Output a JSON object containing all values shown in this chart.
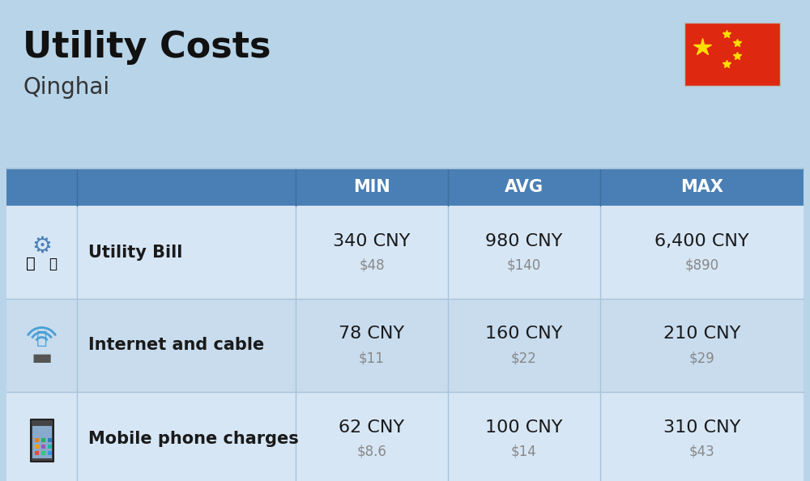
{
  "title": "Utility Costs",
  "subtitle": "Qinghai",
  "background_color": "#b8d4e8",
  "header_color": "#4a7fb5",
  "header_text_color": "#ffffff",
  "row_color_1": "#d6e6f5",
  "row_color_2": "#c8dcee",
  "col_headers": [
    "MIN",
    "AVG",
    "MAX"
  ],
  "rows": [
    {
      "label": "Utility Bill",
      "min_cny": "340 CNY",
      "min_usd": "$48",
      "avg_cny": "980 CNY",
      "avg_usd": "$140",
      "max_cny": "6,400 CNY",
      "max_usd": "$890"
    },
    {
      "label": "Internet and cable",
      "min_cny": "78 CNY",
      "min_usd": "$11",
      "avg_cny": "160 CNY",
      "avg_usd": "$22",
      "max_cny": "210 CNY",
      "max_usd": "$29"
    },
    {
      "label": "Mobile phone charges",
      "min_cny": "62 CNY",
      "min_usd": "$8.6",
      "avg_cny": "100 CNY",
      "avg_usd": "$14",
      "max_cny": "310 CNY",
      "max_usd": "$43"
    }
  ],
  "cny_fontsize": 16,
  "usd_fontsize": 12,
  "label_fontsize": 15,
  "header_fontsize": 15,
  "title_fontsize": 32,
  "subtitle_fontsize": 20,
  "cell_text_color": "#1a1a1a",
  "usd_text_color": "#888888",
  "divider_color": "#a8c4d8",
  "flag_red": "#DE2910",
  "flag_yellow": "#FFDE00"
}
